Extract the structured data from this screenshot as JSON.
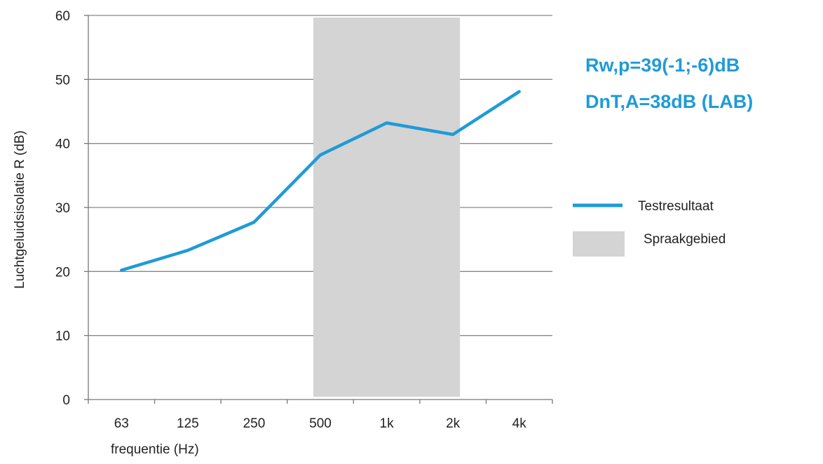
{
  "chart_data": {
    "type": "line",
    "categories": [
      "63",
      "125",
      "250",
      "500",
      "1k",
      "2k",
      "4k"
    ],
    "series": [
      {
        "name": "Testresultaat",
        "values": [
          20.2,
          23.3,
          27.7,
          38.2,
          43.2,
          41.4,
          48.1
        ]
      }
    ],
    "shaded_region": {
      "name": "Spraakgebied",
      "from": "500",
      "to": "2k"
    },
    "xlabel": "frequentie (Hz)",
    "ylabel": "Luchtgeluidsisolatie R (dB)",
    "ylim": [
      0,
      60
    ],
    "yticks": [
      0,
      10,
      20,
      30,
      40,
      50,
      60
    ],
    "grid": "horizontal",
    "legend_position": "right",
    "annotations": [
      "Rw,p=39(-1;-6)dB",
      "DnT,A=38dB (LAB)"
    ],
    "colors": {
      "line": "#1f9bd7",
      "shade": "#d4d4d4",
      "grid": "#888888"
    }
  }
}
